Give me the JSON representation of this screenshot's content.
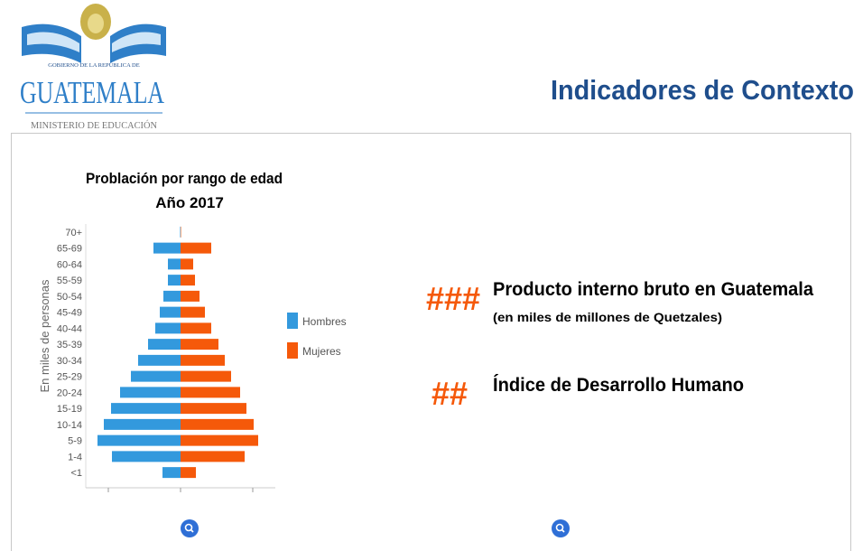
{
  "header": {
    "logo": {
      "line1": "GOBIERNO DE LA REPÚBLICA DE",
      "name": "GUATEMALA",
      "ministry": "MINISTERIO DE EDUCACIÓN"
    },
    "title": "Indicadores de Contexto"
  },
  "chart_data": {
    "type": "pyramid",
    "title": "Problación por rango de edad",
    "subtitle": "Año 2017",
    "ylabel": "En miles de personas",
    "categories": [
      "70+",
      "65-69",
      "60-64",
      "55-59",
      "50-54",
      "45-49",
      "40-44",
      "35-39",
      "30-34",
      "25-29",
      "20-24",
      "15-19",
      "10-14",
      "5-9",
      "1-4",
      "<1"
    ],
    "series": [
      {
        "name": "Hombres",
        "color": "#3399dd",
        "values": [
          5,
          300,
          140,
          140,
          190,
          230,
          280,
          360,
          470,
          550,
          670,
          770,
          850,
          920,
          760,
          200
        ]
      },
      {
        "name": "Mujeres",
        "color": "#f5590a",
        "values": [
          5,
          340,
          140,
          160,
          210,
          270,
          340,
          420,
          490,
          560,
          660,
          730,
          810,
          860,
          710,
          170
        ]
      }
    ],
    "xlim": [
      -1050,
      1050
    ],
    "xticks": [
      -800,
      0,
      800
    ],
    "legend": "right"
  },
  "indicators": [
    {
      "value": "###",
      "label": "Producto interno bruto en Guatemala",
      "note": "(en miles de millones de Quetzales)"
    },
    {
      "value": "##",
      "label": "Índice de Desarrollo Humano"
    }
  ]
}
